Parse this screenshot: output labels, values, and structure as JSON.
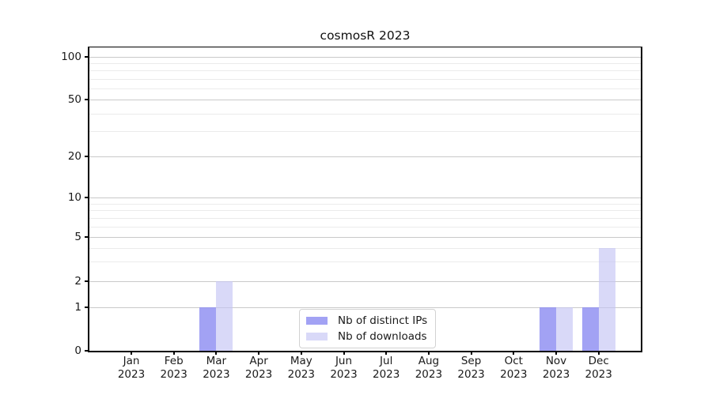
{
  "chart_data": {
    "type": "bar",
    "title": "cosmosR 2023",
    "categories": [
      "Jan 2023",
      "Feb 2023",
      "Mar 2023",
      "Apr 2023",
      "May 2023",
      "Jun 2023",
      "Jul 2023",
      "Aug 2023",
      "Sep 2023",
      "Oct 2023",
      "Nov 2023",
      "Dec 2023"
    ],
    "series": [
      {
        "name": "Nb of distinct IPs",
        "color": "#a9a9f4",
        "fill": "rgba(141, 141, 241, 0.82)",
        "values": [
          0,
          0,
          1,
          0,
          0,
          0,
          0,
          0,
          0,
          0,
          1,
          1
        ]
      },
      {
        "name": "Nb of downloads",
        "color": "#dbdbf8",
        "fill": "rgba(196, 196, 244, 0.65)",
        "values": [
          0,
          0,
          2,
          0,
          0,
          0,
          0,
          0,
          0,
          0,
          1,
          4
        ]
      }
    ],
    "xlabel": "",
    "ylabel": "",
    "yscale": "log-like",
    "ylim": [
      0,
      100
    ],
    "yticks": [
      0,
      1,
      2,
      5,
      10,
      20,
      50,
      100
    ],
    "minor_yticks": [
      3,
      4,
      6,
      7,
      8,
      9,
      30,
      40,
      60,
      70,
      80,
      90
    ],
    "grid": true,
    "legend_position": "lower center"
  },
  "legend": {
    "items": [
      {
        "label": "Nb of distinct IPs"
      },
      {
        "label": "Nb of downloads"
      }
    ]
  },
  "colors": {
    "background": "#ffffff",
    "grid_major": "#c9c9c9",
    "grid_minor": "#ebebeb",
    "spine": "#000000",
    "bar_distinct_ips": "#a9a9f4",
    "bar_downloads": "#dbdbf8"
  }
}
